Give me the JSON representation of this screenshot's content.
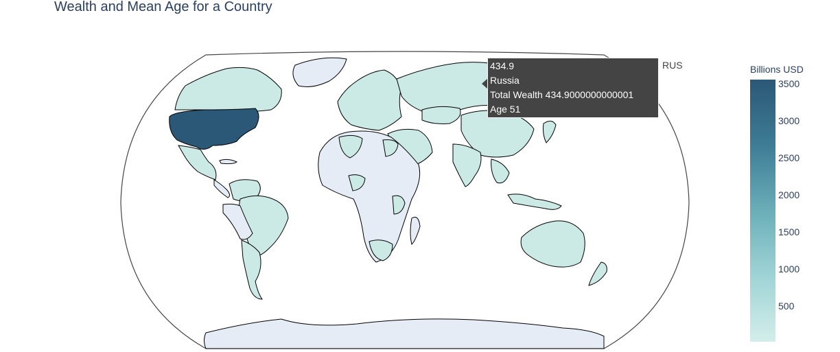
{
  "title": "Wealth and Mean Age for a Country",
  "colorbar": {
    "title": "Billions USD",
    "ticks": [
      "3500",
      "3000",
      "2500",
      "2000",
      "1500",
      "1000",
      "500"
    ],
    "range": [
      0,
      3500
    ],
    "colors": [
      "#d3eeea",
      "#9fd4d6",
      "#6aaeb8",
      "#3e7c95",
      "#2b5876"
    ]
  },
  "map_colors": {
    "no_data": "#e5ecf6",
    "low": "#cbe9e5",
    "usa": "#2b5876",
    "border": "#000000",
    "frame": "#444444"
  },
  "tooltip": {
    "value": "434.9",
    "country": "Russia",
    "wealth_line": "Total Wealth 434.9000000000001",
    "age_line": "Age 51",
    "code": "RUS"
  },
  "chart_data": {
    "type": "choropleth",
    "projection": "natural earth",
    "title": "Wealth and Mean Age for a Country",
    "colorbar_title": "Billions USD",
    "zrange": [
      0,
      3500
    ],
    "highlighted": {
      "code": "RUS",
      "name": "Russia",
      "wealth": 434.9,
      "age": 51
    },
    "countries": [
      {
        "code": "USA",
        "level": 0.95
      },
      {
        "code": "CAN",
        "level": 0.07
      },
      {
        "code": "MEX",
        "level": 0.06
      },
      {
        "code": "BRA",
        "level": 0.09
      },
      {
        "code": "ARG",
        "level": 0.05
      },
      {
        "code": "CHL",
        "level": 0.05
      },
      {
        "code": "RUS",
        "level": 0.124
      },
      {
        "code": "CHN",
        "level": 0.12
      },
      {
        "code": "IND",
        "level": 0.08
      },
      {
        "code": "AUS",
        "level": 0.06
      },
      {
        "code": "ZAF",
        "level": 0.04
      },
      {
        "code": "SAU",
        "level": 0.05
      },
      {
        "code": "KAZ",
        "level": 0.03
      },
      {
        "code": "IDN",
        "level": 0.05
      }
    ]
  }
}
